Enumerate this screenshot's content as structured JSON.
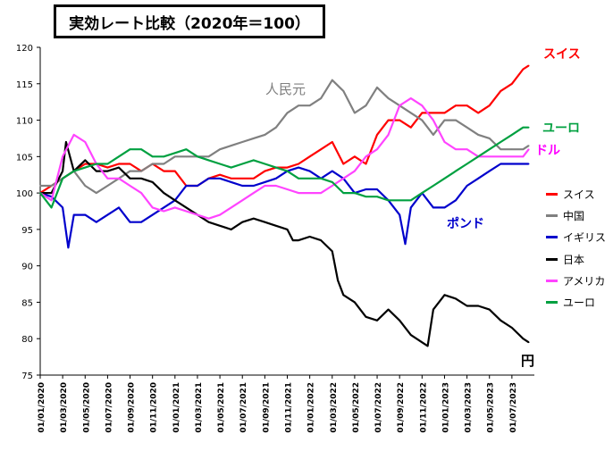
{
  "chart_data": {
    "type": "line",
    "title": "実効レート比較（2020年＝100）",
    "xlabel": "",
    "ylabel": "",
    "ylim": [
      75,
      120
    ],
    "yticks": [
      75,
      80,
      85,
      90,
      95,
      100,
      105,
      110,
      115,
      120
    ],
    "x_tick_labels": [
      "01/01/2020",
      "01/03/2020",
      "01/05/2020",
      "01/07/2020",
      "01/09/2020",
      "01/11/2020",
      "01/01/2021",
      "01/03/2021",
      "01/05/2021",
      "01/07/2021",
      "01/09/2021",
      "01/11/2021",
      "01/01/2022",
      "01/03/2022",
      "01/05/2022",
      "01/07/2022",
      "01/09/2022",
      "01/11/2022",
      "01/01/2023",
      "01/03/2023",
      "01/05/2023",
      "01/07/2023"
    ],
    "x_months": [
      0,
      2,
      4,
      6,
      8,
      10,
      12,
      14,
      16,
      18,
      20,
      22,
      24,
      26,
      28,
      30,
      32,
      34,
      36,
      38,
      40,
      42
    ],
    "legend_position": "right",
    "grid": false,
    "series": [
      {
        "name": "スイス",
        "color": "#ff0000",
        "x": [
          0,
          1,
          2,
          3,
          4,
          5,
          6,
          7,
          8,
          9,
          10,
          11,
          12,
          13,
          14,
          15,
          16,
          17,
          18,
          19,
          20,
          21,
          22,
          23,
          24,
          25,
          26,
          27,
          28,
          29,
          30,
          31,
          32,
          33,
          34,
          35,
          36,
          37,
          38,
          39,
          40,
          41,
          42,
          43,
          43.5
        ],
        "values": [
          100,
          101,
          102,
          103,
          104,
          104,
          103.5,
          104,
          104,
          103,
          104,
          103,
          103,
          101,
          101,
          102,
          102.5,
          102,
          102,
          102,
          103,
          103.5,
          103.5,
          104,
          105,
          106,
          107,
          104,
          105,
          104,
          108,
          110,
          110,
          109,
          111,
          111,
          111,
          112,
          112,
          111,
          112,
          114,
          115,
          117,
          117.5
        ]
      },
      {
        "name": "中国",
        "color": "#808080",
        "x": [
          0,
          1,
          2,
          3,
          4,
          5,
          6,
          7,
          8,
          9,
          10,
          11,
          12,
          13,
          14,
          15,
          16,
          17,
          18,
          19,
          20,
          21,
          22,
          23,
          24,
          25,
          26,
          27,
          28,
          29,
          30,
          31,
          32,
          33,
          34,
          35,
          36,
          37,
          38,
          39,
          40,
          41,
          42,
          43,
          43.5
        ],
        "values": [
          101,
          101,
          102,
          103,
          101,
          100,
          101,
          102,
          103,
          103,
          104,
          104,
          105,
          105,
          105,
          105,
          106,
          106.5,
          107,
          107.5,
          108,
          109,
          111,
          112,
          112,
          113,
          115.5,
          114,
          111,
          112,
          114.5,
          113,
          112,
          111,
          110,
          108,
          110,
          110,
          109,
          108,
          107.5,
          106,
          106,
          106,
          106.5
        ]
      },
      {
        "name": "イギリス",
        "color": "#0000cc",
        "x": [
          0,
          1,
          2,
          2.5,
          3,
          4,
          5,
          6,
          7,
          8,
          9,
          10,
          11,
          12,
          13,
          14,
          15,
          16,
          17,
          18,
          19,
          20,
          21,
          22,
          23,
          24,
          25,
          26,
          27,
          28,
          29,
          30,
          31,
          32,
          32.5,
          33,
          34,
          35,
          36,
          37,
          38,
          39,
          40,
          41,
          42,
          43,
          43.5
        ],
        "values": [
          100,
          99.5,
          98,
          92.5,
          97,
          97,
          96,
          97,
          98,
          96,
          96,
          97,
          98,
          99,
          101,
          101,
          102,
          102,
          101.5,
          101,
          101,
          101.5,
          102,
          103,
          103.5,
          103,
          102,
          103,
          102,
          100,
          100.5,
          100.5,
          99,
          97,
          93,
          98,
          100,
          98,
          98,
          99,
          101,
          102,
          103,
          104,
          104,
          104,
          104
        ]
      },
      {
        "name": "日本",
        "color": "#000000",
        "x": [
          0,
          1,
          2,
          2.3,
          3,
          4,
          5,
          6,
          7,
          8,
          9,
          10,
          11,
          12,
          13,
          14,
          15,
          16,
          17,
          18,
          19,
          20,
          21,
          22,
          22.5,
          23,
          24,
          25,
          26,
          26.5,
          27,
          28,
          29,
          30,
          31,
          32,
          33,
          34,
          34.5,
          35,
          36,
          37,
          38,
          39,
          40,
          41,
          42,
          43,
          43.5
        ],
        "values": [
          100,
          100,
          103,
          107,
          103,
          104.5,
          103,
          103,
          103.5,
          102,
          102,
          101.5,
          100,
          99,
          98,
          97,
          96,
          95.5,
          95,
          96,
          96.5,
          96,
          95.5,
          95,
          93.5,
          93.5,
          94,
          93.5,
          92,
          88,
          86,
          85,
          83,
          82.5,
          84,
          82.5,
          80.5,
          79.5,
          79,
          84,
          86,
          85.5,
          84.5,
          84.5,
          84,
          82.5,
          81.5,
          80,
          79.5
        ]
      },
      {
        "name": "アメリカ",
        "color": "#ff44ff",
        "x": [
          0,
          1,
          2,
          3,
          4,
          5,
          6,
          7,
          8,
          9,
          10,
          11,
          12,
          13,
          14,
          15,
          16,
          17,
          18,
          19,
          20,
          21,
          22,
          23,
          24,
          25,
          26,
          27,
          28,
          29,
          30,
          31,
          32,
          33,
          34,
          35,
          36,
          37,
          38,
          39,
          40,
          41,
          42,
          43,
          43.5
        ],
        "values": [
          100,
          99,
          105,
          108,
          107,
          104,
          102,
          102,
          101,
          100,
          98,
          97.5,
          98,
          97.5,
          97,
          96.5,
          97,
          98,
          99,
          100,
          101,
          101,
          100.5,
          100,
          100,
          100,
          101,
          102,
          103,
          105,
          106,
          108,
          112,
          113,
          112,
          110,
          107,
          106,
          106,
          105,
          105,
          105,
          105,
          105,
          106
        ]
      },
      {
        "name": "ユーロ",
        "color": "#00a040",
        "x": [
          0,
          1,
          2,
          3,
          4,
          5,
          6,
          7,
          8,
          9,
          10,
          11,
          12,
          13,
          14,
          15,
          16,
          17,
          18,
          19,
          20,
          21,
          22,
          23,
          24,
          25,
          26,
          27,
          28,
          29,
          30,
          31,
          32,
          33,
          34,
          35,
          36,
          37,
          38,
          39,
          40,
          41,
          42,
          43,
          43.5
        ],
        "values": [
          100,
          98,
          102,
          103,
          103.5,
          104,
          104,
          105,
          106,
          106,
          105,
          105,
          105.5,
          106,
          105,
          104.5,
          104,
          103.5,
          104,
          104.5,
          104,
          103.5,
          103,
          102,
          102,
          102,
          101.5,
          100,
          100,
          99.5,
          99.5,
          99,
          99,
          99,
          100,
          101,
          102,
          103,
          104,
          105,
          106,
          107,
          108,
          109,
          109
        ]
      }
    ],
    "annotations": [
      {
        "text": "スイス",
        "color": "#ff0000"
      },
      {
        "text": "人民元",
        "color": "#808080"
      },
      {
        "text": "ユーロ",
        "color": "#00a040"
      },
      {
        "text": "ドル",
        "color": "#ff00ff"
      },
      {
        "text": "ポンド",
        "color": "#0000cc"
      },
      {
        "text": "円",
        "color": "#000000"
      }
    ]
  }
}
